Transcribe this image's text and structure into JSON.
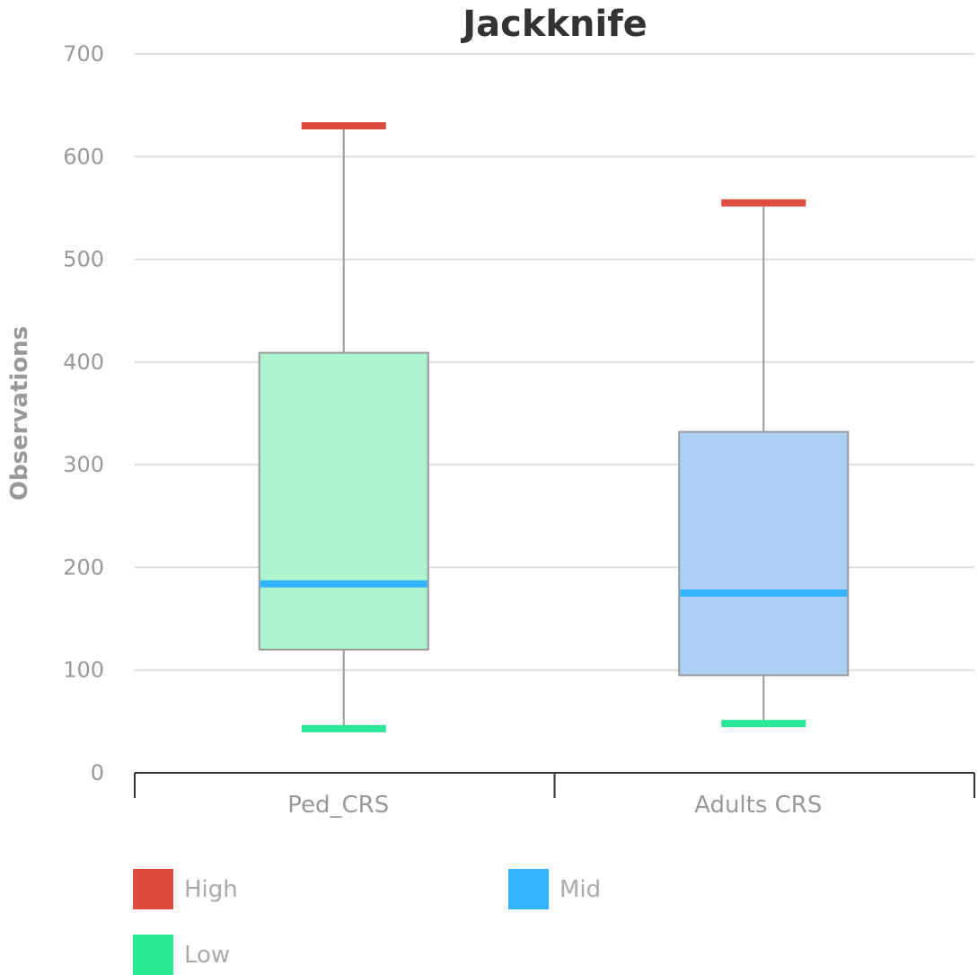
{
  "chart_data": {
    "type": "boxplot",
    "title": "Jackknife",
    "ylabel": "Observations",
    "xlabel": "",
    "ylim": [
      0,
      700
    ],
    "yticks": [
      0,
      100,
      200,
      300,
      400,
      500,
      600,
      700
    ],
    "categories": [
      "Ped_CRS",
      "Adults CRS"
    ],
    "boxes": [
      {
        "category": "Ped_CRS",
        "low": 43,
        "q1": 120,
        "median": 184,
        "q3": 409,
        "high": 630,
        "fill": "#abf4cd"
      },
      {
        "category": "Adults CRS",
        "low": 48,
        "q1": 95,
        "median": 175,
        "q3": 332,
        "high": 555,
        "fill": "#acd0f4"
      }
    ],
    "legend": [
      {
        "name": "High",
        "color": "#dc4b3c"
      },
      {
        "name": "Mid",
        "color": "#33b3ff"
      },
      {
        "name": "Low",
        "color": "#29e996"
      }
    ],
    "grid": true,
    "legend_position": "bottom"
  }
}
